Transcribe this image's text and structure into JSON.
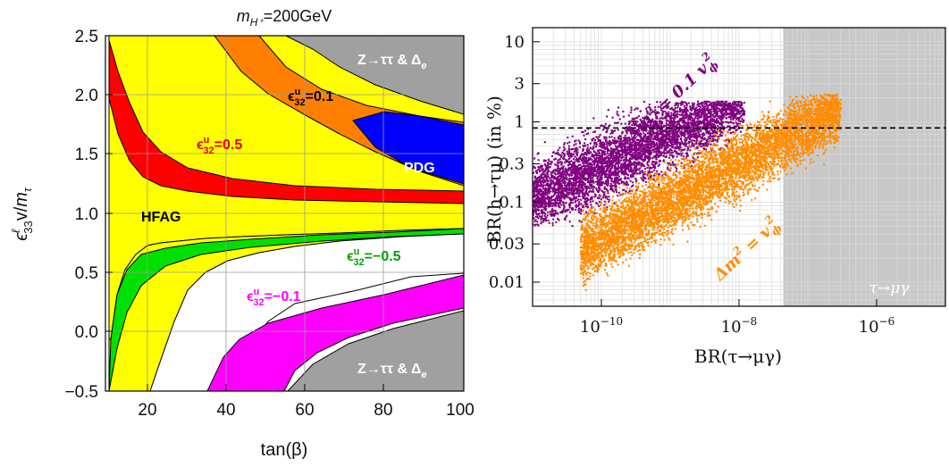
{
  "chart_data": [
    {
      "type": "area",
      "title": "m_{H⁺}=200GeV",
      "title_main": "m",
      "title_sub": "H⁺",
      "title_rest": "=200GeV",
      "xlabel": "tan(β)",
      "ylabel": "εℓ₃₃v/mτ",
      "ylabel_base": "ϵ",
      "ylabel_sup": "ℓ",
      "ylabel_sub": "33",
      "ylabel_mid": "v/",
      "ylabel_m": "m",
      "ylabel_tau": "τ",
      "xlim": [
        10,
        100
      ],
      "ylim": [
        -0.5,
        2.5
      ],
      "xticks": [
        "20",
        "40",
        "60",
        "80",
        "100"
      ],
      "yticks": [
        "2.5",
        "2.0",
        "1.5",
        "1.0",
        "0.5",
        "0.0",
        "−0.5"
      ],
      "grid": true,
      "colors": {
        "hfag": "#ffff00",
        "red": "#ff0000",
        "orange": "#ff8000",
        "blue": "#0000ff",
        "green": "#00e000",
        "magenta": "#ff00ff",
        "gray": "#a0a0a0"
      },
      "regions": [
        {
          "name": "HFAG",
          "label": "HFAG",
          "color": "#ffff00"
        },
        {
          "name": "PDG",
          "label": "PDG",
          "color": "#0000ff"
        },
        {
          "name": "eps-0.5",
          "label_sup": "u",
          "label_sub": "32",
          "label_val": "=0.5",
          "color": "#ff0000"
        },
        {
          "name": "eps-0.1",
          "label_sup": "u",
          "label_sub": "32",
          "label_val": "=0.1",
          "color": "#ff8000"
        },
        {
          "name": "eps-minus-0.5",
          "label_sup": "u",
          "label_sub": "32",
          "label_val": "=−0.5",
          "color": "#00e000"
        },
        {
          "name": "eps-minus-0.1",
          "label_sup": "u",
          "label_sub": "32",
          "label_val": "=−0.1",
          "color": "#ff00ff"
        },
        {
          "name": "z-tautau-top",
          "label": "Z→ττ & Δ",
          "label_sub": "e",
          "color": "#a0a0a0"
        },
        {
          "name": "z-tautau-bottom",
          "label": "Z→ττ & Δ",
          "label_sub": "e",
          "color": "#a0a0a0"
        }
      ],
      "eps_symbol": "ϵ"
    },
    {
      "type": "scatter",
      "xlabel": "BR(τ→μγ)",
      "ylabel": "BR(h→τμ)  (in %)",
      "x_scale": "log",
      "y_scale": "log",
      "xlim": [
        1e-11,
        1e-05
      ],
      "ylim": [
        0.005,
        15
      ],
      "xticks": [
        {
          "value": 1e-10,
          "base": "10",
          "exp": "−10"
        },
        {
          "value": 1e-08,
          "base": "10",
          "exp": "−8"
        },
        {
          "value": 1e-06,
          "base": "10",
          "exp": "−6"
        }
      ],
      "yticks": [
        "10",
        "3",
        "1",
        "0.3",
        "0.1",
        "0.03",
        "0.01"
      ],
      "ytick_values": [
        10,
        3,
        1,
        0.3,
        0.1,
        0.03,
        0.01
      ],
      "grid": true,
      "excluded_region": {
        "x_from": 4.4e-08,
        "label": "τ→μγ",
        "color": "#c8c8c8"
      },
      "reference_line": {
        "y": 0.84,
        "style": "dashed",
        "color": "#000000"
      },
      "series": [
        {
          "name": "Δm² = 0.1 vϕ²",
          "label_main": "Δm",
          "label_eq": " = 0.1 v",
          "label_sub": "ϕ",
          "color": "#800080",
          "x_range": [
            1e-11,
            1.2e-08
          ],
          "y_range": [
            0.05,
            1.8
          ]
        },
        {
          "name": "Δm² = vϕ²",
          "label_main": "Δm",
          "label_eq": " = v",
          "label_sub": "ϕ",
          "color": "#ff8c00",
          "x_range": [
            5e-11,
            3e-07
          ],
          "y_range": [
            0.005,
            2.2
          ]
        }
      ]
    }
  ]
}
